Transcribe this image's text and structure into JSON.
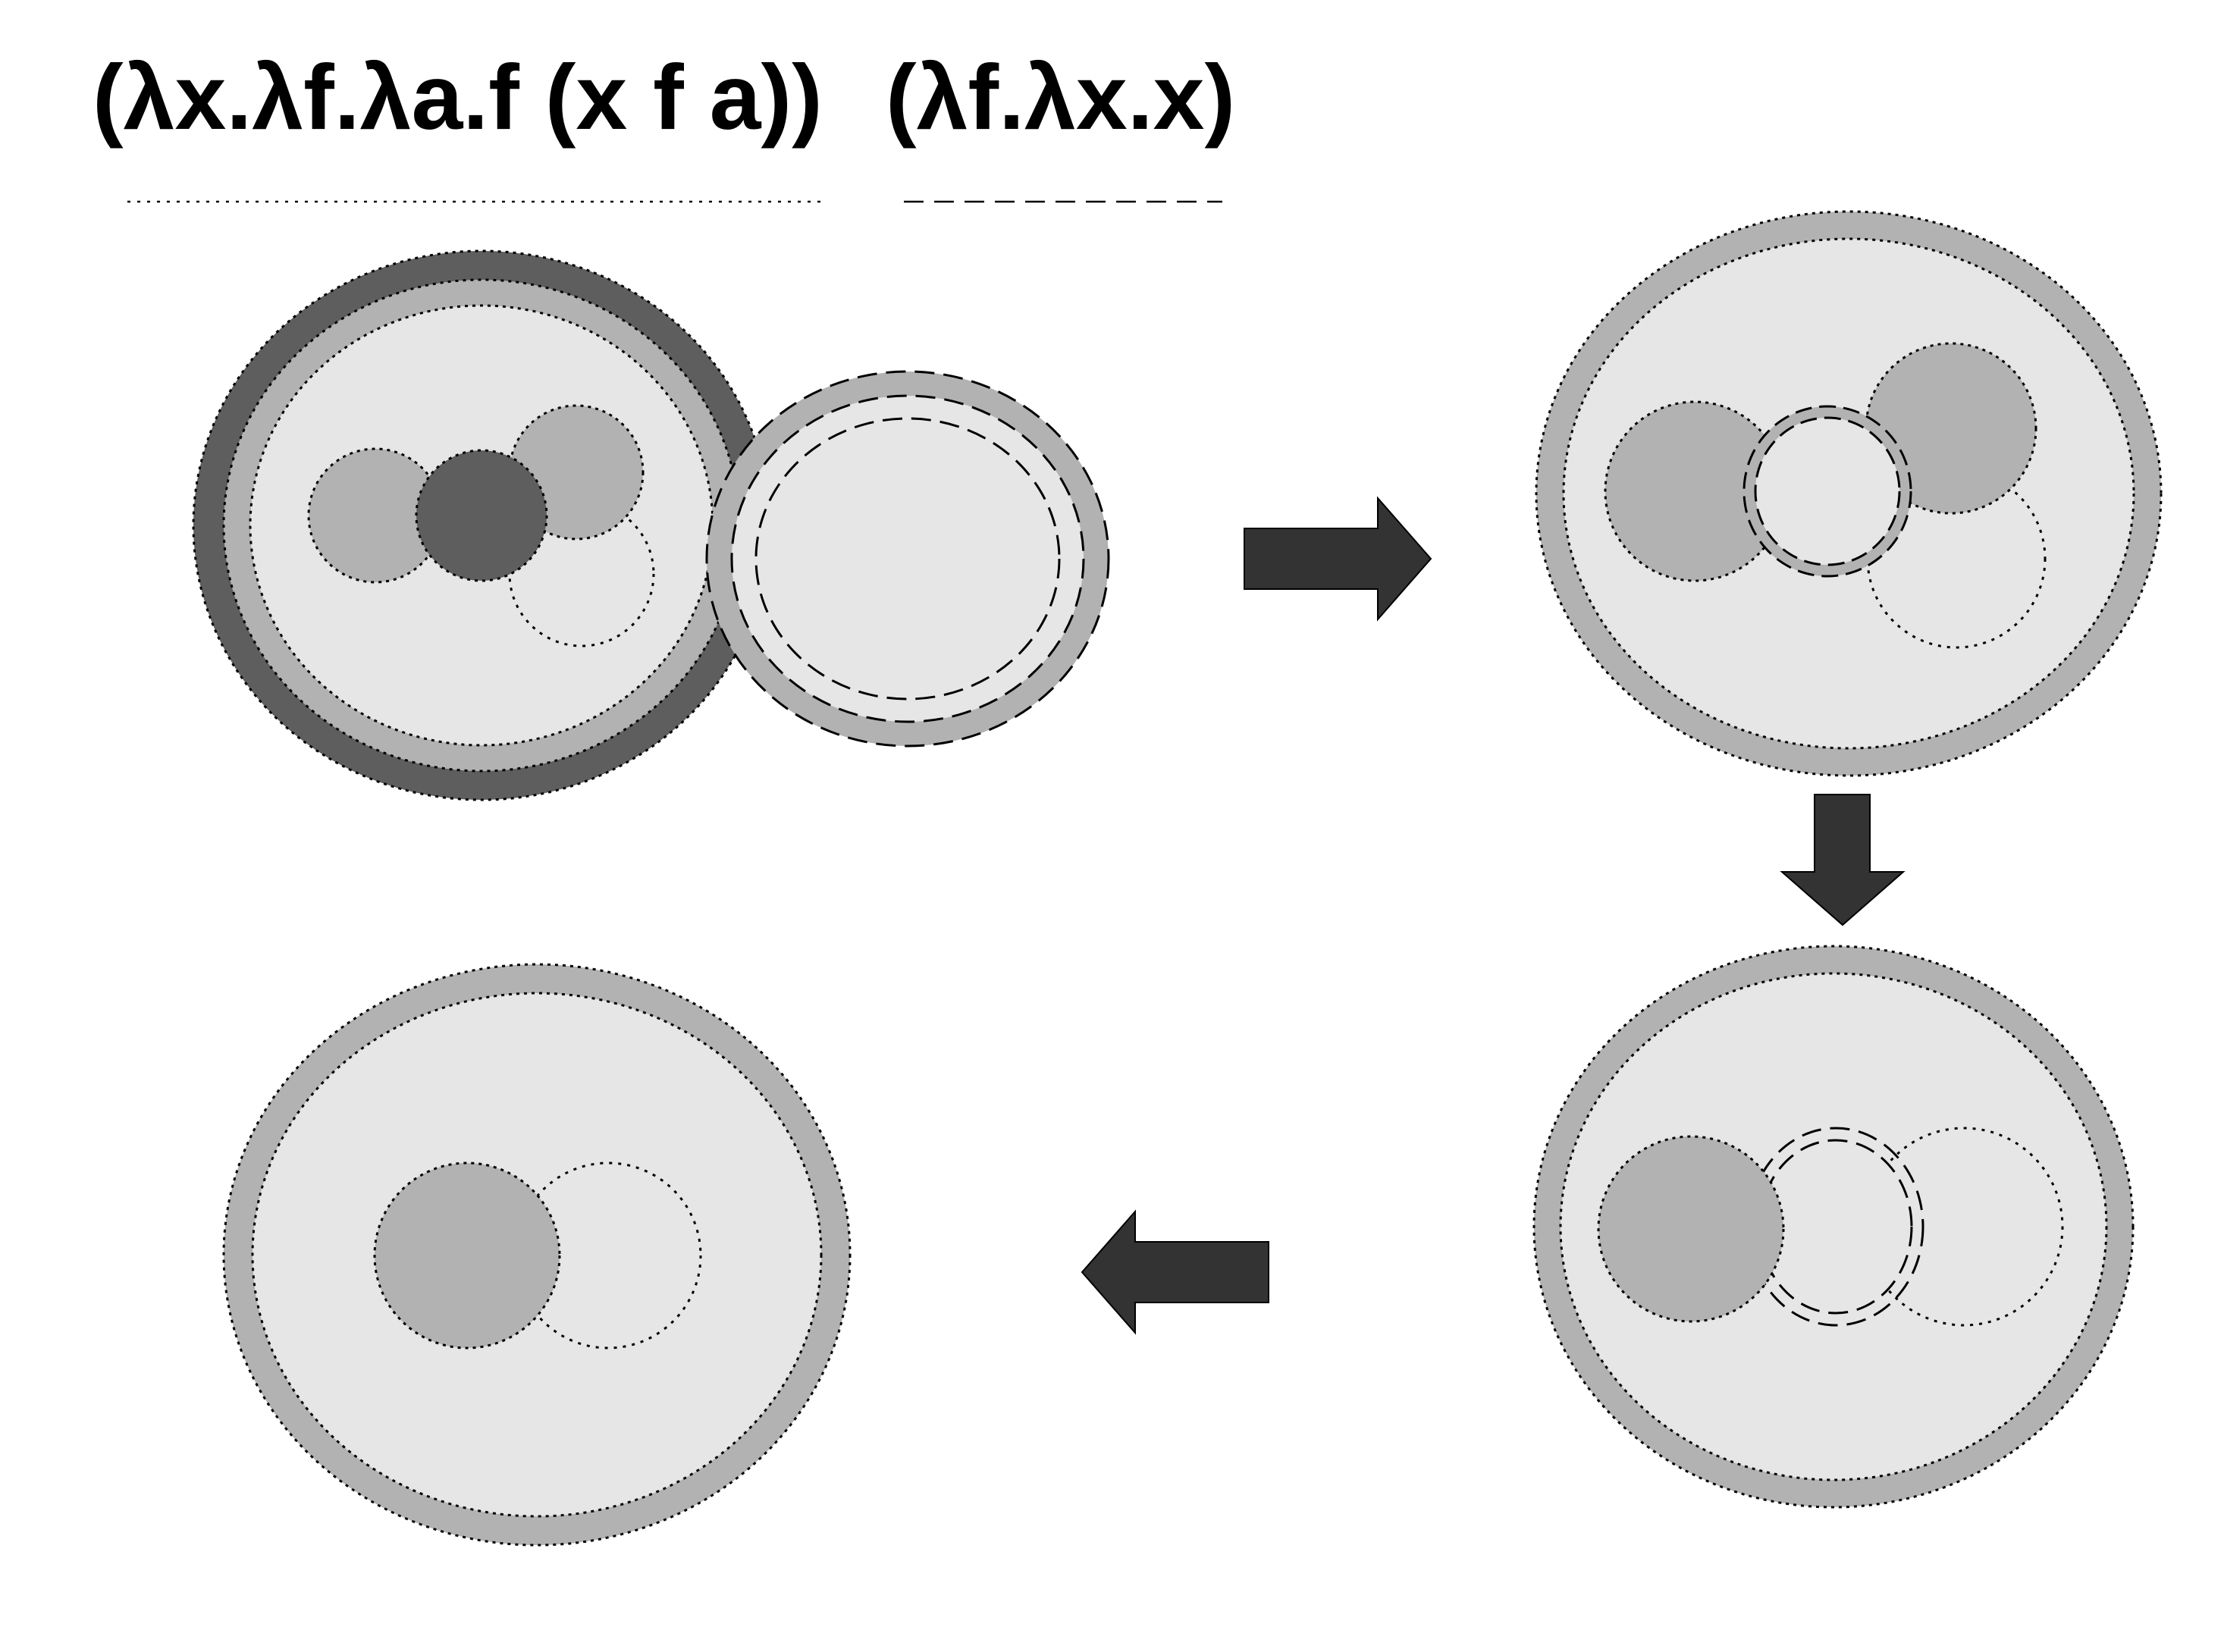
{
  "terms": {
    "function_term": "(λx.λf.λa.f (x f a))",
    "argument_term": "(λf.λx.x)"
  },
  "colors": {
    "background": "#ffffff",
    "bubble_fill": "#e6e6e6",
    "light_ring": "#b2b2b2",
    "dark_ring": "#5e5e5e",
    "arrow_fill": "#333333",
    "outline": "#000000"
  },
  "icons": {
    "arrow_step_1": "arrow-right-icon",
    "arrow_step_2": "arrow-down-icon",
    "arrow_step_3": "arrow-left-icon"
  }
}
